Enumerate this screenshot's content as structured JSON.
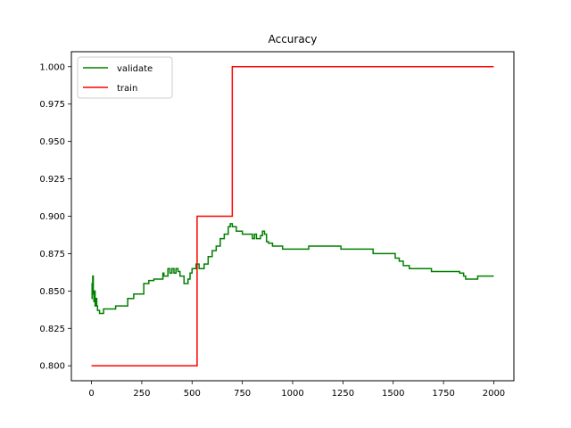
{
  "chart_data": {
    "type": "line",
    "title": "Accuracy",
    "xlabel": "",
    "ylabel": "",
    "xlim": [
      -100,
      2100
    ],
    "ylim": [
      0.79,
      1.01
    ],
    "xticks": [
      0,
      250,
      500,
      750,
      1000,
      1250,
      1500,
      1750,
      2000
    ],
    "xtick_labels": [
      "0",
      "250",
      "500",
      "750",
      "1000",
      "1250",
      "1500",
      "1750",
      "2000"
    ],
    "yticks": [
      0.8,
      0.825,
      0.85,
      0.875,
      0.9,
      0.925,
      0.95,
      0.975,
      1.0
    ],
    "ytick_labels": [
      "0.800",
      "0.825",
      "0.850",
      "0.875",
      "0.900",
      "0.925",
      "0.950",
      "0.975",
      "1.000"
    ],
    "grid": false,
    "legend_position": "top-left",
    "series": [
      {
        "name": "validate",
        "color": "#008000",
        "step": true,
        "x": [
          0,
          3,
          6,
          9,
          12,
          15,
          18,
          22,
          26,
          30,
          40,
          60,
          120,
          180,
          210,
          260,
          285,
          310,
          355,
          360,
          380,
          390,
          400,
          410,
          420,
          430,
          440,
          460,
          480,
          490,
          500,
          520,
          535,
          560,
          580,
          600,
          620,
          640,
          660,
          680,
          690,
          700,
          720,
          750,
          800,
          810,
          820,
          840,
          850,
          860,
          870,
          880,
          900,
          950,
          1000,
          1080,
          1150,
          1240,
          1300,
          1400,
          1510,
          1530,
          1550,
          1580,
          1690,
          1830,
          1850,
          1860,
          1920,
          1950,
          2000
        ],
        "y": [
          0.845,
          0.855,
          0.86,
          0.848,
          0.843,
          0.85,
          0.84,
          0.845,
          0.84,
          0.837,
          0.835,
          0.838,
          0.84,
          0.845,
          0.848,
          0.855,
          0.857,
          0.858,
          0.862,
          0.86,
          0.865,
          0.862,
          0.865,
          0.862,
          0.865,
          0.863,
          0.86,
          0.855,
          0.858,
          0.862,
          0.865,
          0.868,
          0.865,
          0.868,
          0.873,
          0.877,
          0.88,
          0.885,
          0.888,
          0.893,
          0.895,
          0.893,
          0.89,
          0.888,
          0.885,
          0.888,
          0.885,
          0.887,
          0.89,
          0.888,
          0.883,
          0.882,
          0.88,
          0.878,
          0.878,
          0.88,
          0.88,
          0.878,
          0.878,
          0.875,
          0.872,
          0.87,
          0.867,
          0.865,
          0.863,
          0.862,
          0.86,
          0.858,
          0.86,
          0.86,
          0.86
        ]
      },
      {
        "name": "train",
        "color": "#ff0000",
        "step": true,
        "x": [
          0,
          525,
          700,
          2000
        ],
        "y": [
          0.8,
          0.9,
          1.0,
          1.0
        ]
      }
    ]
  }
}
